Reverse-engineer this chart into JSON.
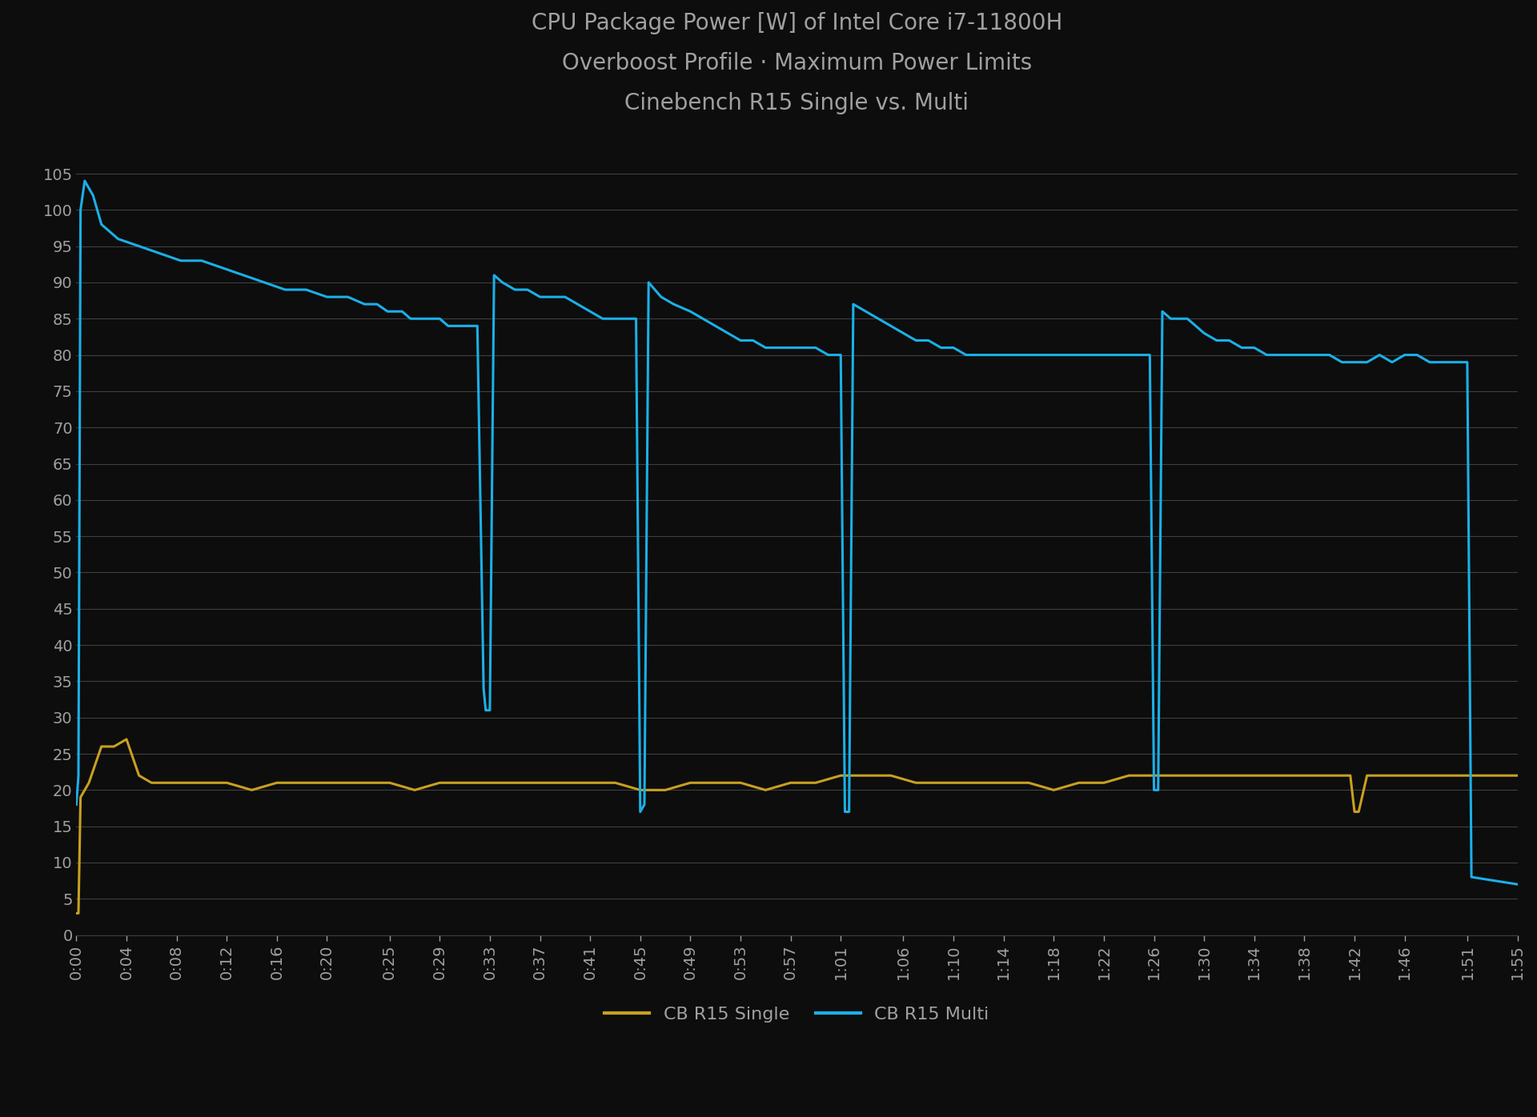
{
  "title": "CPU Package Power [W] of Intel Core i7-11800H\nOverboost Profile · Maximum Power Limits\nCinebench R15 Single vs. Multi",
  "background_color": "#0d0d0d",
  "grid_color": "#404040",
  "text_color": "#a0a0a0",
  "line_color_single": "#c8a020",
  "line_color_multi": "#1ab0e8",
  "legend_labels": [
    "CB R15 Single",
    "CB R15 Multi"
  ],
  "ylim": [
    0,
    110
  ],
  "yticks": [
    0,
    5,
    10,
    15,
    20,
    25,
    30,
    35,
    40,
    45,
    50,
    55,
    60,
    65,
    70,
    75,
    80,
    85,
    90,
    95,
    100,
    105
  ],
  "x_labels": [
    "0:00",
    "0:04",
    "0:08",
    "0:12",
    "0:16",
    "0:20",
    "0:25",
    "0:29",
    "0:33",
    "0:37",
    "0:41",
    "0:45",
    "0:49",
    "0:53",
    "0:57",
    "1:01",
    "1:06",
    "1:10",
    "1:14",
    "1:18",
    "1:22",
    "1:26",
    "1:30",
    "1:34",
    "1:38",
    "1:42",
    "1:46",
    "1:51",
    "1:55"
  ],
  "x_ticks_seconds": [
    0,
    240,
    480,
    720,
    960,
    1200,
    1500,
    1740,
    1980,
    2220,
    2460,
    2700,
    2940,
    3180,
    3420,
    3660,
    3960,
    4200,
    4440,
    4680,
    4920,
    5160,
    5400,
    5640,
    5880,
    6120,
    6360,
    6660,
    6900
  ],
  "total_seconds": 6900,
  "single_data": [
    [
      0,
      3
    ],
    [
      10,
      3
    ],
    [
      20,
      19
    ],
    [
      40,
      20
    ],
    [
      60,
      21
    ],
    [
      120,
      26
    ],
    [
      180,
      26
    ],
    [
      240,
      27
    ],
    [
      300,
      22
    ],
    [
      360,
      21
    ],
    [
      480,
      21
    ],
    [
      600,
      21
    ],
    [
      720,
      21
    ],
    [
      840,
      20
    ],
    [
      960,
      21
    ],
    [
      1080,
      21
    ],
    [
      1200,
      21
    ],
    [
      1380,
      21
    ],
    [
      1500,
      21
    ],
    [
      1620,
      20
    ],
    [
      1740,
      21
    ],
    [
      1860,
      21
    ],
    [
      1980,
      21
    ],
    [
      2100,
      21
    ],
    [
      2220,
      21
    ],
    [
      2340,
      21
    ],
    [
      2460,
      21
    ],
    [
      2580,
      21
    ],
    [
      2700,
      20
    ],
    [
      2820,
      20
    ],
    [
      2940,
      21
    ],
    [
      3060,
      21
    ],
    [
      3180,
      21
    ],
    [
      3300,
      20
    ],
    [
      3420,
      21
    ],
    [
      3540,
      21
    ],
    [
      3660,
      22
    ],
    [
      3780,
      22
    ],
    [
      3900,
      22
    ],
    [
      4020,
      21
    ],
    [
      4140,
      21
    ],
    [
      4200,
      21
    ],
    [
      4320,
      21
    ],
    [
      4440,
      21
    ],
    [
      4560,
      21
    ],
    [
      4680,
      20
    ],
    [
      4800,
      21
    ],
    [
      4920,
      21
    ],
    [
      5040,
      22
    ],
    [
      5160,
      22
    ],
    [
      5280,
      22
    ],
    [
      5400,
      22
    ],
    [
      5520,
      22
    ],
    [
      5640,
      22
    ],
    [
      5760,
      22
    ],
    [
      5880,
      22
    ],
    [
      6000,
      22
    ],
    [
      6100,
      22
    ],
    [
      6120,
      17
    ],
    [
      6140,
      17
    ],
    [
      6180,
      22
    ],
    [
      6240,
      22
    ],
    [
      6360,
      22
    ],
    [
      6480,
      22
    ],
    [
      6600,
      22
    ],
    [
      6660,
      22
    ],
    [
      6780,
      22
    ],
    [
      6840,
      22
    ],
    [
      6900,
      22
    ]
  ],
  "multi_data": [
    [
      0,
      18
    ],
    [
      10,
      22
    ],
    [
      20,
      100
    ],
    [
      40,
      104
    ],
    [
      80,
      102
    ],
    [
      120,
      98
    ],
    [
      200,
      96
    ],
    [
      300,
      95
    ],
    [
      400,
      94
    ],
    [
      500,
      93
    ],
    [
      600,
      93
    ],
    [
      700,
      92
    ],
    [
      800,
      91
    ],
    [
      900,
      90
    ],
    [
      1000,
      89
    ],
    [
      1100,
      89
    ],
    [
      1200,
      88
    ],
    [
      1300,
      88
    ],
    [
      1380,
      87
    ],
    [
      1440,
      87
    ],
    [
      1490,
      86
    ],
    [
      1500,
      86
    ],
    [
      1560,
      86
    ],
    [
      1600,
      85
    ],
    [
      1650,
      85
    ],
    [
      1700,
      85
    ],
    [
      1740,
      85
    ],
    [
      1780,
      84
    ],
    [
      1820,
      84
    ],
    [
      1840,
      84
    ],
    [
      1860,
      84
    ],
    [
      1890,
      84
    ],
    [
      1920,
      84
    ],
    [
      1950,
      34
    ],
    [
      1960,
      31
    ],
    [
      1980,
      31
    ],
    [
      2000,
      91
    ],
    [
      2040,
      90
    ],
    [
      2100,
      89
    ],
    [
      2160,
      89
    ],
    [
      2220,
      88
    ],
    [
      2280,
      88
    ],
    [
      2340,
      88
    ],
    [
      2400,
      87
    ],
    [
      2460,
      86
    ],
    [
      2520,
      85
    ],
    [
      2580,
      85
    ],
    [
      2640,
      85
    ],
    [
      2680,
      85
    ],
    [
      2700,
      17
    ],
    [
      2720,
      18
    ],
    [
      2740,
      90
    ],
    [
      2800,
      88
    ],
    [
      2860,
      87
    ],
    [
      2940,
      86
    ],
    [
      3000,
      85
    ],
    [
      3060,
      84
    ],
    [
      3120,
      83
    ],
    [
      3180,
      82
    ],
    [
      3240,
      82
    ],
    [
      3300,
      81
    ],
    [
      3360,
      81
    ],
    [
      3420,
      81
    ],
    [
      3480,
      81
    ],
    [
      3540,
      81
    ],
    [
      3600,
      80
    ],
    [
      3660,
      80
    ],
    [
      3680,
      17
    ],
    [
      3700,
      17
    ],
    [
      3720,
      87
    ],
    [
      3780,
      86
    ],
    [
      3840,
      85
    ],
    [
      3900,
      84
    ],
    [
      3960,
      83
    ],
    [
      4020,
      82
    ],
    [
      4080,
      82
    ],
    [
      4140,
      81
    ],
    [
      4200,
      81
    ],
    [
      4260,
      80
    ],
    [
      4320,
      80
    ],
    [
      4380,
      80
    ],
    [
      4440,
      80
    ],
    [
      4500,
      80
    ],
    [
      4560,
      80
    ],
    [
      4620,
      80
    ],
    [
      4680,
      80
    ],
    [
      4740,
      80
    ],
    [
      4800,
      80
    ],
    [
      4860,
      80
    ],
    [
      4920,
      80
    ],
    [
      4980,
      80
    ],
    [
      5040,
      80
    ],
    [
      5100,
      80
    ],
    [
      5140,
      80
    ],
    [
      5160,
      20
    ],
    [
      5180,
      20
    ],
    [
      5200,
      86
    ],
    [
      5240,
      85
    ],
    [
      5280,
      85
    ],
    [
      5320,
      85
    ],
    [
      5360,
      84
    ],
    [
      5400,
      83
    ],
    [
      5460,
      82
    ],
    [
      5520,
      82
    ],
    [
      5580,
      81
    ],
    [
      5640,
      81
    ],
    [
      5700,
      80
    ],
    [
      5760,
      80
    ],
    [
      5820,
      80
    ],
    [
      5880,
      80
    ],
    [
      5940,
      80
    ],
    [
      6000,
      80
    ],
    [
      6060,
      79
    ],
    [
      6120,
      79
    ],
    [
      6180,
      79
    ],
    [
      6240,
      80
    ],
    [
      6300,
      79
    ],
    [
      6360,
      80
    ],
    [
      6420,
      80
    ],
    [
      6480,
      79
    ],
    [
      6540,
      79
    ],
    [
      6600,
      79
    ],
    [
      6640,
      79
    ],
    [
      6660,
      79
    ],
    [
      6680,
      8
    ],
    [
      6900,
      7
    ]
  ]
}
